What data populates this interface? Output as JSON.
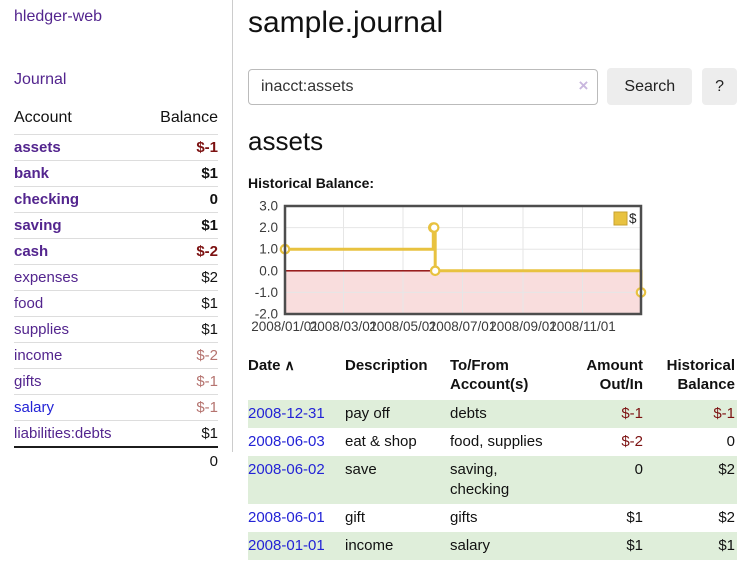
{
  "colors": {
    "purple": "#53258e",
    "blue": "#2323d6",
    "red_strong": "#7c1111",
    "red_soft": "#b5736f",
    "stripe_green": "#dfeeda",
    "button_bg": "#ededed"
  },
  "app": {
    "brand": "hledger-web"
  },
  "sidebar": {
    "journal_label": "Journal",
    "accounts_table": {
      "headers": {
        "account": "Account",
        "balance": "Balance"
      },
      "rows": [
        {
          "name": "assets",
          "indent": 1,
          "bold": true,
          "balance": "$-1",
          "balance_style": "neg-strong"
        },
        {
          "name": "bank",
          "indent": 2,
          "bold": true,
          "balance": "$1",
          "balance_style": "pos-strong"
        },
        {
          "name": "checking",
          "indent": 3,
          "bold": true,
          "balance": "0",
          "balance_style": "pos-strong"
        },
        {
          "name": "saving",
          "indent": 3,
          "bold": true,
          "balance": "$1",
          "balance_style": "pos-strong"
        },
        {
          "name": "cash",
          "indent": 2,
          "bold": true,
          "balance": "$-2",
          "balance_style": "neg-strong"
        },
        {
          "name": "expenses",
          "indent": 1,
          "bold": false,
          "balance": "$2",
          "balance_style": "pos"
        },
        {
          "name": "food",
          "indent": 2,
          "bold": false,
          "balance": "$1",
          "balance_style": "pos"
        },
        {
          "name": "supplies",
          "indent": 2,
          "bold": false,
          "balance": "$1",
          "balance_style": "pos"
        },
        {
          "name": "income",
          "indent": 1,
          "bold": false,
          "balance": "$-2",
          "balance_style": "neg-soft"
        },
        {
          "name": "gifts",
          "indent": 2,
          "bold": false,
          "balance": "$-1",
          "balance_style": "neg-soft"
        },
        {
          "name": "salary",
          "indent": 2,
          "bold": false,
          "link_color": "blue",
          "balance": "$-1",
          "balance_style": "neg-soft"
        },
        {
          "name": "liabilities:debts",
          "indent": 1,
          "bold": false,
          "balance": "$1",
          "balance_style": "pos"
        }
      ],
      "total": "0"
    }
  },
  "header": {
    "title": "sample.journal"
  },
  "search": {
    "value": "inacct:assets",
    "clear_icon": "×",
    "button_label": "Search",
    "help_label": "?"
  },
  "account_page": {
    "heading": "assets",
    "chart_label": "Historical Balance:"
  },
  "chart_data": {
    "type": "line",
    "title": "Historical Balance:",
    "legend": "$",
    "legend_position": "top-right",
    "grid": true,
    "grid_color": "#e6e6e6",
    "step": true,
    "series": [
      {
        "name": "$",
        "color": "#e8c240",
        "points": [
          [
            "2008-01-01",
            1
          ],
          [
            "2008-06-01",
            2
          ],
          [
            "2008-06-02",
            2
          ],
          [
            "2008-06-03",
            0
          ],
          [
            "2008-12-31",
            -1
          ]
        ]
      }
    ],
    "x_range": [
      "2008-01-01",
      "2008-12-31"
    ],
    "x_ticks": [
      "2008/01/01",
      "2008/03/01",
      "2008/05/01",
      "2008/07/01",
      "2008/09/01",
      "2008/11/01"
    ],
    "ylim": [
      -2,
      3
    ],
    "y_ticks": [
      3.0,
      2.0,
      1.0,
      0.0,
      -1.0,
      -2.0
    ],
    "negative_region_color": "#f9dddd",
    "zero_line_color": "#8b0000"
  },
  "register_table": {
    "sort_icon": "∧",
    "columns": [
      {
        "label": "Date"
      },
      {
        "label": "Description"
      },
      {
        "label": "To/From Account(s)"
      },
      {
        "label": "Amount Out/In"
      },
      {
        "label": "Historical Balance"
      }
    ],
    "rows": [
      {
        "date": "2008-12-31",
        "description": "pay off",
        "accounts": "debts",
        "amount": "$-1",
        "amount_neg": true,
        "balance": "$-1",
        "balance_neg": true
      },
      {
        "date": "2008-06-03",
        "description": "eat & shop",
        "accounts": "food, supplies",
        "amount": "$-2",
        "amount_neg": true,
        "balance": "0",
        "balance_neg": false
      },
      {
        "date": "2008-06-02",
        "description": "save",
        "accounts": "saving,\nchecking",
        "amount": "0",
        "amount_neg": false,
        "balance": "$2",
        "balance_neg": false
      },
      {
        "date": "2008-06-01",
        "description": "gift",
        "accounts": "gifts",
        "amount": "$1",
        "amount_neg": false,
        "balance": "$2",
        "balance_neg": false
      },
      {
        "date": "2008-01-01",
        "description": "income",
        "accounts": "salary",
        "amount": "$1",
        "amount_neg": false,
        "balance": "$1",
        "balance_neg": false
      }
    ]
  }
}
